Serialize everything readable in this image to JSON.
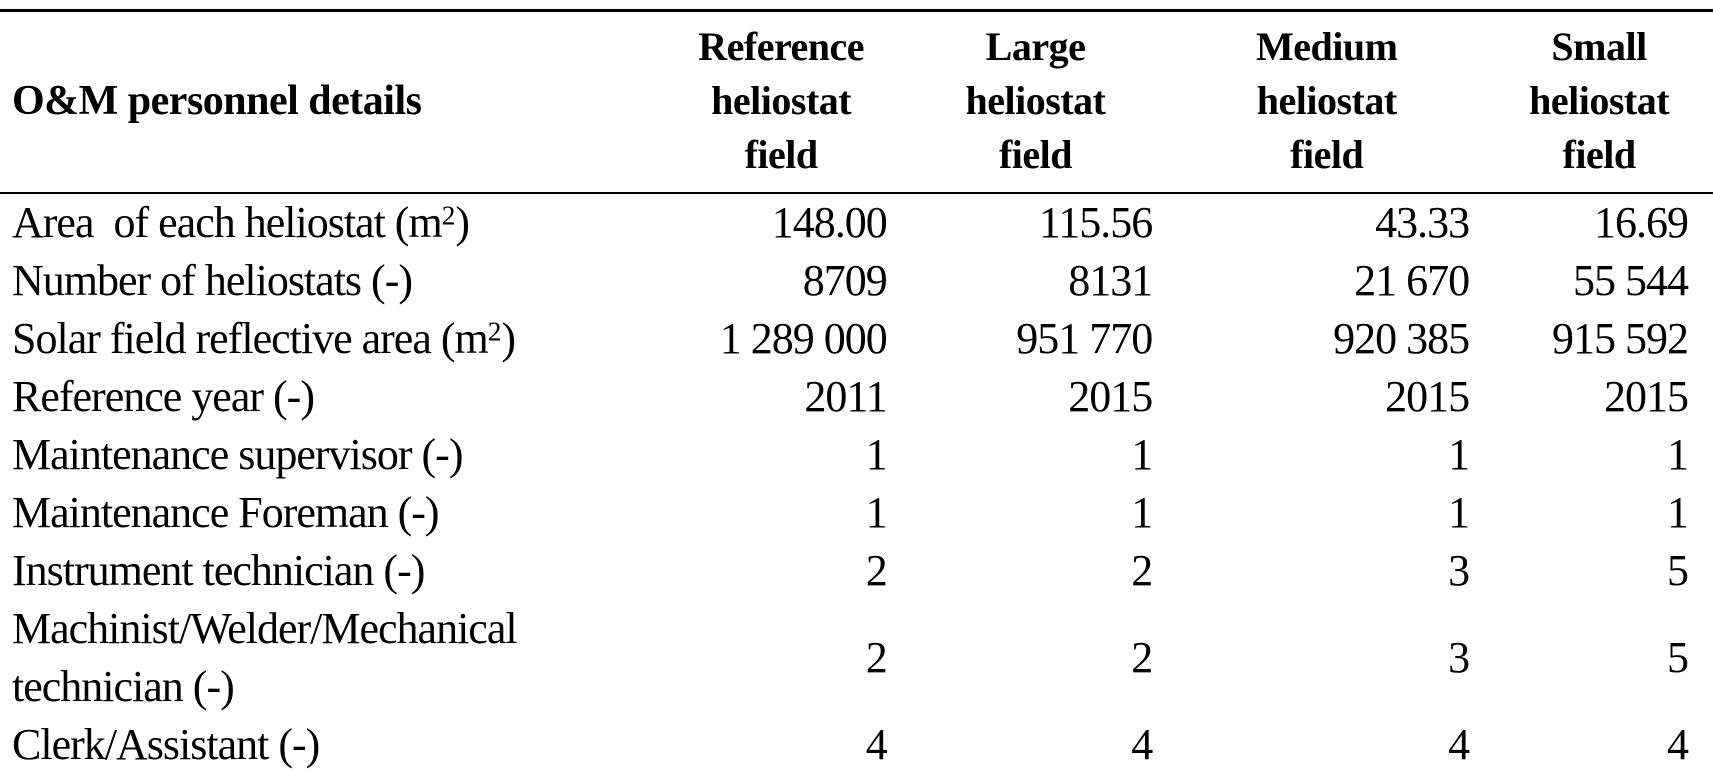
{
  "table": {
    "row_header_label": "O&M personnel details",
    "columns": [
      {
        "label": "Reference heliostat field",
        "lines": [
          "Reference",
          "heliostat",
          "field"
        ]
      },
      {
        "label": "Large heliostat field",
        "lines": [
          "Large",
          "heliostat",
          "field"
        ]
      },
      {
        "label": "Medium heliostat field",
        "lines": [
          "Medium",
          "heliostat",
          "field"
        ]
      },
      {
        "label": "Small heliostat field",
        "lines": [
          "Small",
          "heliostat",
          "field"
        ]
      }
    ],
    "rows": [
      {
        "label": "Area  of each heliostat (m²)",
        "values": [
          "148.00",
          "115.56",
          "43.33",
          "16.69"
        ]
      },
      {
        "label": "Number of heliostats (-)",
        "values": [
          "8709",
          "8131",
          "21 670",
          "55 544"
        ]
      },
      {
        "label": "Solar field reflective area (m²)",
        "values": [
          "1 289 000",
          "951 770",
          "920 385",
          "915 592"
        ]
      },
      {
        "label": "Reference year (-)",
        "values": [
          "2011",
          "2015",
          "2015",
          "2015"
        ]
      },
      {
        "label": "Maintenance supervisor (-)",
        "values": [
          "1",
          "1",
          "1",
          "1"
        ]
      },
      {
        "label": "Maintenance Foreman (-)",
        "values": [
          "1",
          "1",
          "1",
          "1"
        ]
      },
      {
        "label": "Instrument technician (-)",
        "values": [
          "2",
          "2",
          "3",
          "5"
        ]
      },
      {
        "label": "Machinist/Welder/Mechanical technician (-)",
        "values": [
          "2",
          "2",
          "3",
          "5"
        ]
      },
      {
        "label": "Clerk/Assistant (-)",
        "values": [
          "4",
          "4",
          "4",
          "4"
        ]
      }
    ],
    "colors": {
      "text": "#000000",
      "background": "#ffffff",
      "rule": "#000000"
    }
  },
  "chart_data": {
    "type": "table",
    "title": "O&M personnel details",
    "categories": [
      "Reference heliostat field",
      "Large heliostat field",
      "Medium heliostat field",
      "Small heliostat field"
    ],
    "series": [
      {
        "name": "Area of each heliostat (m2)",
        "values": [
          148.0,
          115.56,
          43.33,
          16.69
        ]
      },
      {
        "name": "Number of heliostats (-)",
        "values": [
          8709,
          8131,
          21670,
          55544
        ]
      },
      {
        "name": "Solar field reflective area (m2)",
        "values": [
          1289000,
          951770,
          920385,
          915592
        ]
      },
      {
        "name": "Reference year (-)",
        "values": [
          2011,
          2015,
          2015,
          2015
        ]
      },
      {
        "name": "Maintenance supervisor (-)",
        "values": [
          1,
          1,
          1,
          1
        ]
      },
      {
        "name": "Maintenance Foreman (-)",
        "values": [
          1,
          1,
          1,
          1
        ]
      },
      {
        "name": "Instrument technician (-)",
        "values": [
          2,
          2,
          3,
          5
        ]
      },
      {
        "name": "Machinist/Welder/Mechanical technician (-)",
        "values": [
          2,
          2,
          3,
          5
        ]
      },
      {
        "name": "Clerk/Assistant (-)",
        "values": [
          4,
          4,
          4,
          4
        ]
      }
    ]
  }
}
